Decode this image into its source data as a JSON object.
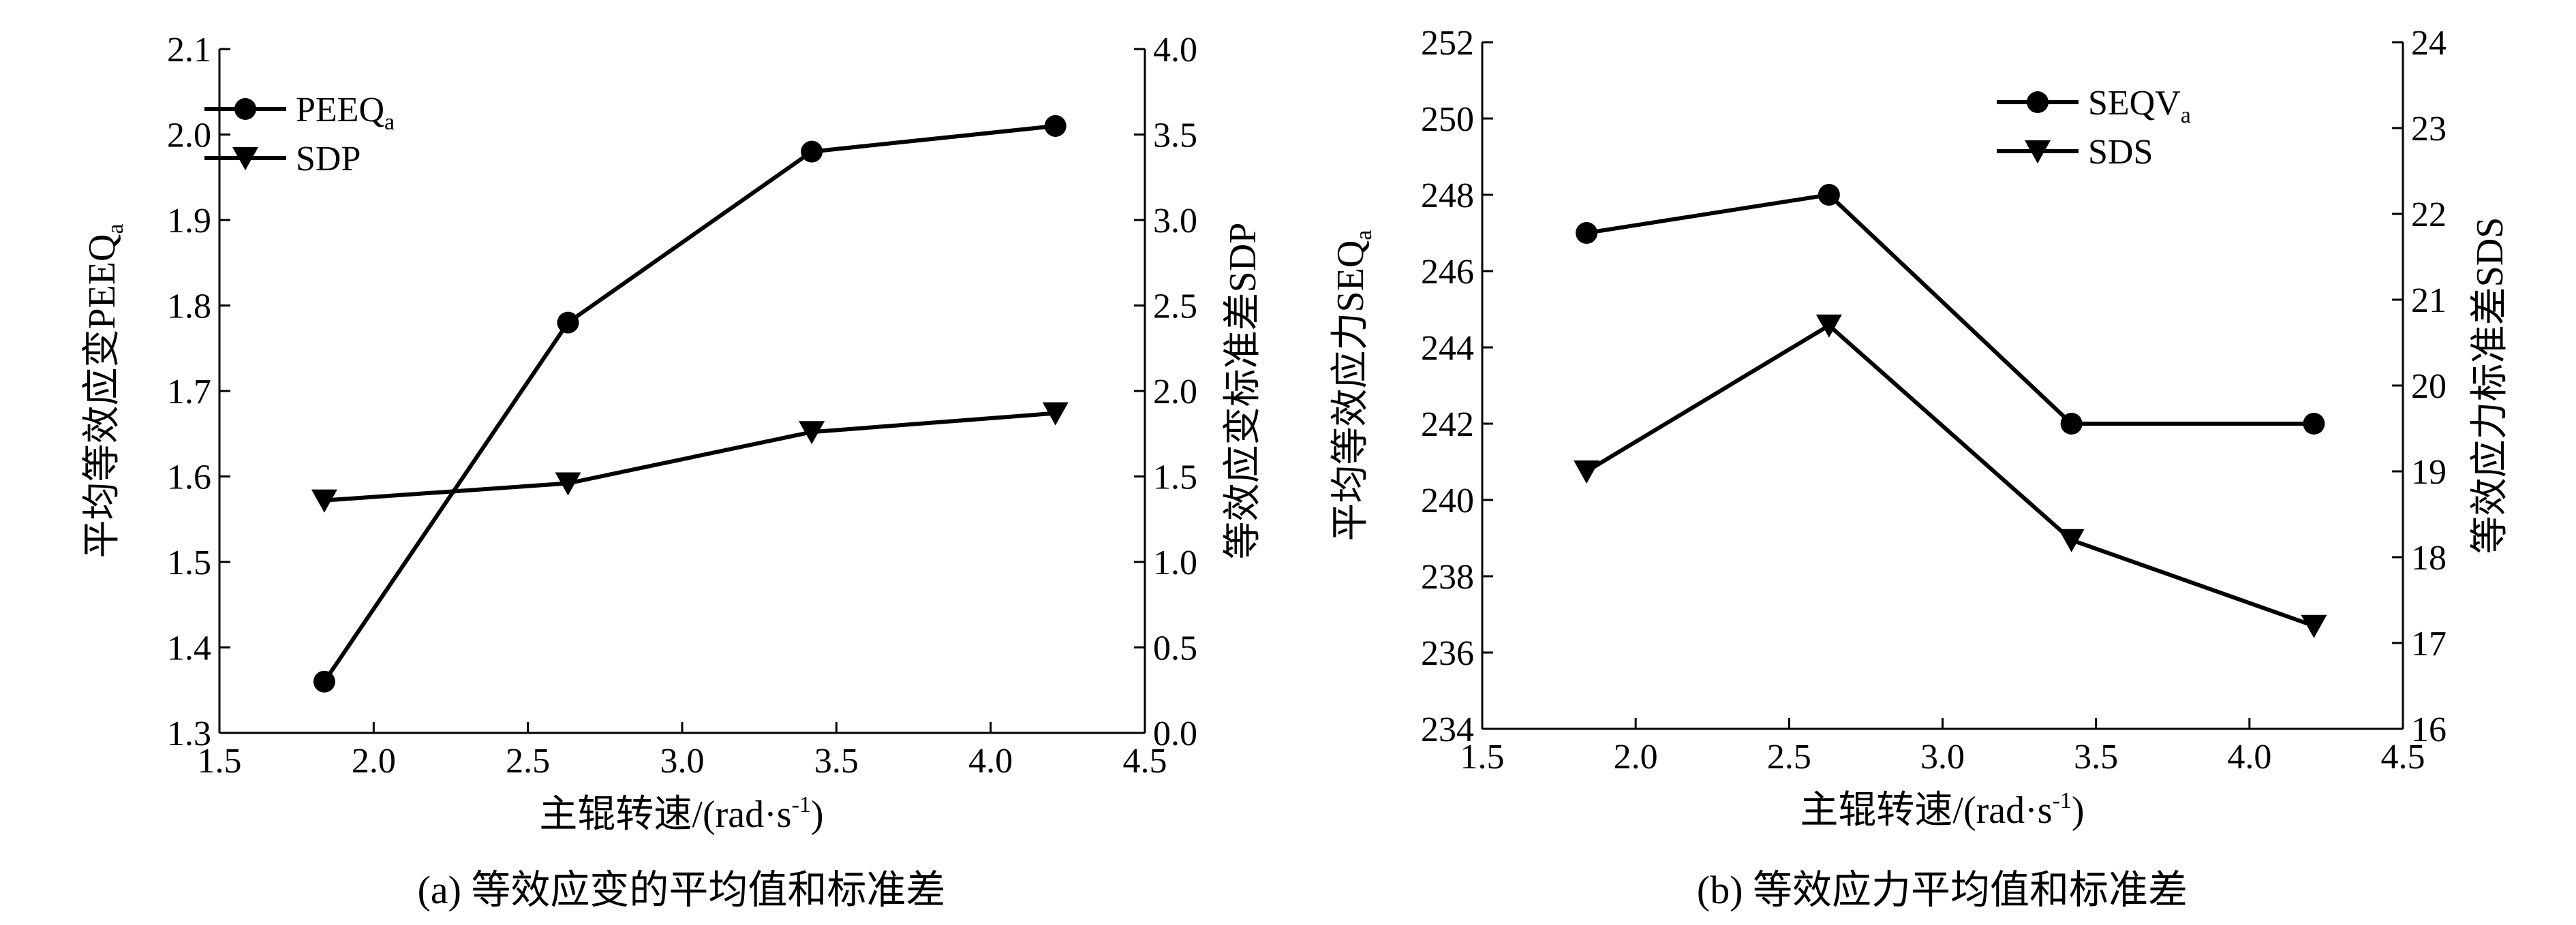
{
  "chart_data": [
    {
      "type": "line",
      "panel_caption": "(a) 等效应变的平均值和标准差",
      "xlabel": "主辊转速/(rad·s-1)",
      "xlabel_main": "主辊转速/(rad·s",
      "xlabel_sup": "-1",
      "xlabel_close": ")",
      "xlim": [
        1.5,
        4.5
      ],
      "xticks": [
        "1.5",
        "2.0",
        "2.5",
        "3.0",
        "3.5",
        "4.0",
        "4.5"
      ],
      "ylabel_left": "平均等效应变PEEQa",
      "ylabel_left_main": "平均等效应变PEEQ",
      "ylabel_left_sub": "a",
      "ylim_left": [
        1.3,
        2.1
      ],
      "yticks_left": [
        "1.3",
        "1.4",
        "1.5",
        "1.6",
        "1.7",
        "1.8",
        "1.9",
        "2.0",
        "2.1"
      ],
      "ylabel_right": "等效应变标准差SDP",
      "ylim_right": [
        0.0,
        4.0
      ],
      "yticks_right": [
        "0.0",
        "0.5",
        "1.0",
        "1.5",
        "2.0",
        "2.5",
        "3.0",
        "3.5",
        "4.0"
      ],
      "legend_position": "top-left",
      "series": [
        {
          "name": "PEEQa",
          "legend_main": "PEEQ",
          "legend_sub": "a",
          "axis": "left",
          "marker": "circle",
          "x": [
            1.84,
            2.63,
            3.42,
            4.21
          ],
          "values": [
            1.36,
            1.78,
            1.98,
            2.01
          ]
        },
        {
          "name": "SDP",
          "legend_main": "SDP",
          "legend_sub": "",
          "axis": "right",
          "marker": "triangle-down",
          "x": [
            1.84,
            2.63,
            3.42,
            4.21
          ],
          "values": [
            1.36,
            1.46,
            1.76,
            1.87
          ]
        }
      ]
    },
    {
      "type": "line",
      "panel_caption": "(b) 等效应力平均值和标准差",
      "xlabel": "主辊转速/(rad·s-1)",
      "xlabel_main": "主辊转速/(rad·s",
      "xlabel_sup": "-1",
      "xlabel_close": ")",
      "xlim": [
        1.5,
        4.5
      ],
      "xticks": [
        "1.5",
        "2.0",
        "2.5",
        "3.0",
        "3.5",
        "4.0",
        "4.5"
      ],
      "ylabel_left": "平均等效应力SEQa",
      "ylabel_left_main": "平均等效应力SEQ",
      "ylabel_left_sub": "a",
      "ylim_left": [
        234,
        252
      ],
      "yticks_left": [
        "234",
        "236",
        "238",
        "240",
        "242",
        "244",
        "246",
        "248",
        "250",
        "252"
      ],
      "ylabel_right": "等效应力标准差SDS",
      "ylim_right": [
        16,
        24
      ],
      "yticks_right": [
        "16",
        "17",
        "18",
        "19",
        "20",
        "21",
        "22",
        "23",
        "24"
      ],
      "legend_position": "top-right",
      "series": [
        {
          "name": "SEQVa",
          "legend_main": "SEQV",
          "legend_sub": "a",
          "axis": "left",
          "marker": "circle",
          "x": [
            1.84,
            2.63,
            3.42,
            4.21
          ],
          "values": [
            247,
            248,
            242,
            242
          ]
        },
        {
          "name": "SDS",
          "legend_main": "SDS",
          "legend_sub": "",
          "axis": "right",
          "marker": "triangle-down",
          "x": [
            1.84,
            2.63,
            3.42,
            4.21
          ],
          "values": [
            19.0,
            20.7,
            18.2,
            17.2
          ]
        }
      ]
    }
  ]
}
